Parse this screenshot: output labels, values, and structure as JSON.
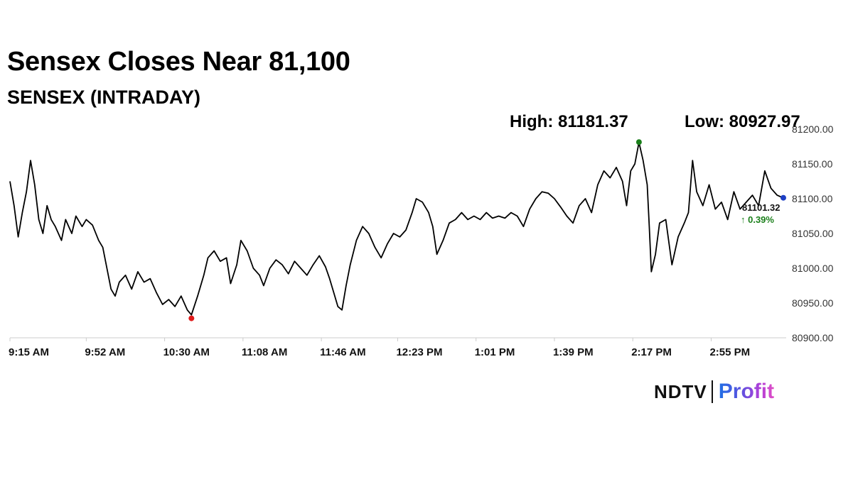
{
  "title": "Sensex Closes Near 81,100",
  "subtitle": "SENSEX (INTRADAY)",
  "stats": {
    "high_label": "High: 81181.37",
    "low_label": "Low: 80927.97"
  },
  "logo": {
    "left_text": "NDTV",
    "right_text": "Profit"
  },
  "colors": {
    "line": "#000000",
    "high_marker": "#1a7f1a",
    "low_marker": "#e01b1b",
    "close_marker": "#1d3fc4",
    "change_text": "#1a7f1a",
    "axis": "#cccccc"
  },
  "chart_data": {
    "type": "line",
    "title": "Sensex Closes Near 81,100",
    "subtitle": "SENSEX (INTRADAY)",
    "xlabel": "",
    "ylabel": "",
    "ylim": [
      80900,
      81200
    ],
    "xlim": [
      "9:15",
      "3:30"
    ],
    "grid": false,
    "y_ticks": [
      "80900.00",
      "80950.00",
      "81000.00",
      "81050.00",
      "81100.00",
      "81150.00",
      "81200.00"
    ],
    "x_ticks": [
      "9:15 AM",
      "9:52 AM",
      "10:30 AM",
      "11:08 AM",
      "11:46 AM",
      "12:23 PM",
      "1:01 PM",
      "1:39 PM",
      "2:17 PM",
      "2:55 PM"
    ],
    "series": [
      {
        "values": [
          [
            "9:15",
            81125
          ],
          [
            "9:17",
            81090
          ],
          [
            "9:19",
            81045
          ],
          [
            "9:21",
            81080
          ],
          [
            "9:23",
            81110
          ],
          [
            "9:25",
            81155
          ],
          [
            "9:27",
            81120
          ],
          [
            "9:29",
            81070
          ],
          [
            "9:31",
            81050
          ],
          [
            "9:33",
            81090
          ],
          [
            "9:35",
            81070
          ],
          [
            "9:37",
            81060
          ],
          [
            "9:40",
            81040
          ],
          [
            "9:42",
            81070
          ],
          [
            "9:45",
            81050
          ],
          [
            "9:47",
            81075
          ],
          [
            "9:50",
            81060
          ],
          [
            "9:52",
            81070
          ],
          [
            "9:55",
            81062
          ],
          [
            "9:58",
            81040
          ],
          [
            "10:00",
            81030
          ],
          [
            "10:02",
            81000
          ],
          [
            "10:04",
            80970
          ],
          [
            "10:06",
            80960
          ],
          [
            "10:08",
            80980
          ],
          [
            "10:11",
            80990
          ],
          [
            "10:14",
            80970
          ],
          [
            "10:17",
            80995
          ],
          [
            "10:20",
            80980
          ],
          [
            "10:23",
            80985
          ],
          [
            "10:26",
            80965
          ],
          [
            "10:29",
            80948
          ],
          [
            "10:32",
            80955
          ],
          [
            "10:35",
            80945
          ],
          [
            "10:38",
            80960
          ],
          [
            "10:41",
            80940
          ],
          [
            "10:43",
            80933
          ],
          [
            "10:46",
            80960
          ],
          [
            "10:49",
            80990
          ],
          [
            "10:51",
            81015
          ],
          [
            "10:54",
            81025
          ],
          [
            "10:57",
            81010
          ],
          [
            "11:00",
            81015
          ],
          [
            "11:02",
            80978
          ],
          [
            "11:05",
            81005
          ],
          [
            "11:07",
            81040
          ],
          [
            "11:10",
            81025
          ],
          [
            "11:13",
            81000
          ],
          [
            "11:16",
            80990
          ],
          [
            "11:18",
            80975
          ],
          [
            "11:21",
            81000
          ],
          [
            "11:24",
            81012
          ],
          [
            "11:27",
            81005
          ],
          [
            "11:30",
            80992
          ],
          [
            "11:33",
            81010
          ],
          [
            "11:36",
            81000
          ],
          [
            "11:39",
            80990
          ],
          [
            "11:42",
            81005
          ],
          [
            "11:45",
            81018
          ],
          [
            "11:48",
            81002
          ],
          [
            "11:50",
            80985
          ],
          [
            "11:52",
            80965
          ],
          [
            "11:54",
            80945
          ],
          [
            "11:56",
            80940
          ],
          [
            "11:58",
            80975
          ],
          [
            "12:00",
            81005
          ],
          [
            "12:03",
            81040
          ],
          [
            "12:06",
            81060
          ],
          [
            "12:09",
            81050
          ],
          [
            "12:12",
            81030
          ],
          [
            "12:15",
            81015
          ],
          [
            "12:18",
            81035
          ],
          [
            "12:21",
            81050
          ],
          [
            "12:24",
            81045
          ],
          [
            "12:27",
            81055
          ],
          [
            "12:30",
            81080
          ],
          [
            "12:32",
            81100
          ],
          [
            "12:35",
            81095
          ],
          [
            "12:38",
            81080
          ],
          [
            "12:40",
            81060
          ],
          [
            "12:42",
            81020
          ],
          [
            "12:45",
            81040
          ],
          [
            "12:48",
            81065
          ],
          [
            "12:51",
            81070
          ],
          [
            "12:54",
            81080
          ],
          [
            "12:57",
            81070
          ],
          [
            "1:00",
            81075
          ],
          [
            "1:03",
            81070
          ],
          [
            "1:06",
            81080
          ],
          [
            "1:09",
            81072
          ],
          [
            "1:12",
            81075
          ],
          [
            "1:15",
            81072
          ],
          [
            "1:18",
            81080
          ],
          [
            "1:21",
            81075
          ],
          [
            "1:24",
            81060
          ],
          [
            "1:27",
            81085
          ],
          [
            "1:30",
            81100
          ],
          [
            "1:33",
            81110
          ],
          [
            "1:36",
            81108
          ],
          [
            "1:39",
            81100
          ],
          [
            "1:42",
            81088
          ],
          [
            "1:45",
            81075
          ],
          [
            "1:48",
            81065
          ],
          [
            "1:51",
            81090
          ],
          [
            "1:54",
            81100
          ],
          [
            "1:57",
            81080
          ],
          [
            "2:00",
            81120
          ],
          [
            "2:03",
            81140
          ],
          [
            "2:06",
            81130
          ],
          [
            "2:09",
            81145
          ],
          [
            "2:12",
            81125
          ],
          [
            "2:14",
            81090
          ],
          [
            "2:16",
            81140
          ],
          [
            "2:18",
            81150
          ],
          [
            "2:20",
            81181
          ],
          [
            "2:22",
            81155
          ],
          [
            "2:24",
            81120
          ],
          [
            "2:25",
            81060
          ],
          [
            "2:26",
            80995
          ],
          [
            "2:28",
            81020
          ],
          [
            "2:30",
            81065
          ],
          [
            "2:33",
            81070
          ],
          [
            "2:36",
            81005
          ],
          [
            "2:39",
            81045
          ],
          [
            "2:42",
            81065
          ],
          [
            "2:44",
            81080
          ],
          [
            "2:46",
            81155
          ],
          [
            "2:48",
            81110
          ],
          [
            "2:51",
            81090
          ],
          [
            "2:54",
            81120
          ],
          [
            "2:57",
            81085
          ],
          [
            "3:00",
            81095
          ],
          [
            "3:03",
            81070
          ],
          [
            "3:06",
            81110
          ],
          [
            "3:09",
            81085
          ],
          [
            "3:12",
            81095
          ],
          [
            "3:15",
            81105
          ],
          [
            "3:18",
            81090
          ],
          [
            "3:21",
            81140
          ],
          [
            "3:24",
            81115
          ],
          [
            "3:27",
            81105
          ],
          [
            "3:30",
            81101
          ]
        ]
      }
    ],
    "markers": {
      "high": {
        "x": "2:20",
        "y": 81181.37
      },
      "low": {
        "x": "10:43",
        "y": 80927.97
      },
      "close": {
        "x": "3:30",
        "y": 81101.32
      }
    },
    "annotations": {
      "close_value": "81101.32",
      "change": "0.39%",
      "change_arrow": "↑"
    }
  }
}
